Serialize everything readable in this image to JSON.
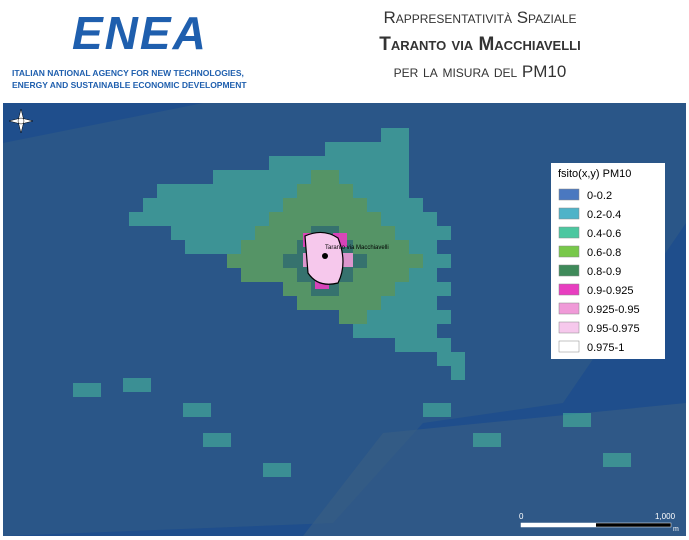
{
  "header": {
    "logo": "ENEA",
    "agency": [
      "ITALIAN NATIONAL AGENCY FOR NEW TECHNOLOGIES,",
      "ENERGY AND SUSTAINABLE ECONOMIC DEVELOPMENT"
    ],
    "title": [
      "Rappresentatività Spaziale",
      "Taranto via Macchiavelli",
      "per la misura del PM10"
    ]
  },
  "map": {
    "station_label": "Taranto via Macchiavelli",
    "legend": {
      "title": "fsito(x,y) PM10",
      "entries": [
        {
          "label": "0-0.2",
          "color": "#4a78c0"
        },
        {
          "label": "0.2-0.4",
          "color": "#4fb3c8"
        },
        {
          "label": "0.4-0.6",
          "color": "#4cc7a0"
        },
        {
          "label": "0.6-0.8",
          "color": "#78c84a"
        },
        {
          "label": "0.8-0.9",
          "color": "#3f8a5a"
        },
        {
          "label": "0.9-0.925",
          "color": "#e83ec0"
        },
        {
          "label": "0.925-0.95",
          "color": "#f09ad8"
        },
        {
          "label": "0.95-0.975",
          "color": "#f6c8ec"
        },
        {
          "label": "0.975-1",
          "color": "#ffffff"
        }
      ]
    },
    "scale": {
      "start": "0",
      "end": "1,000",
      "unit": "m"
    }
  }
}
